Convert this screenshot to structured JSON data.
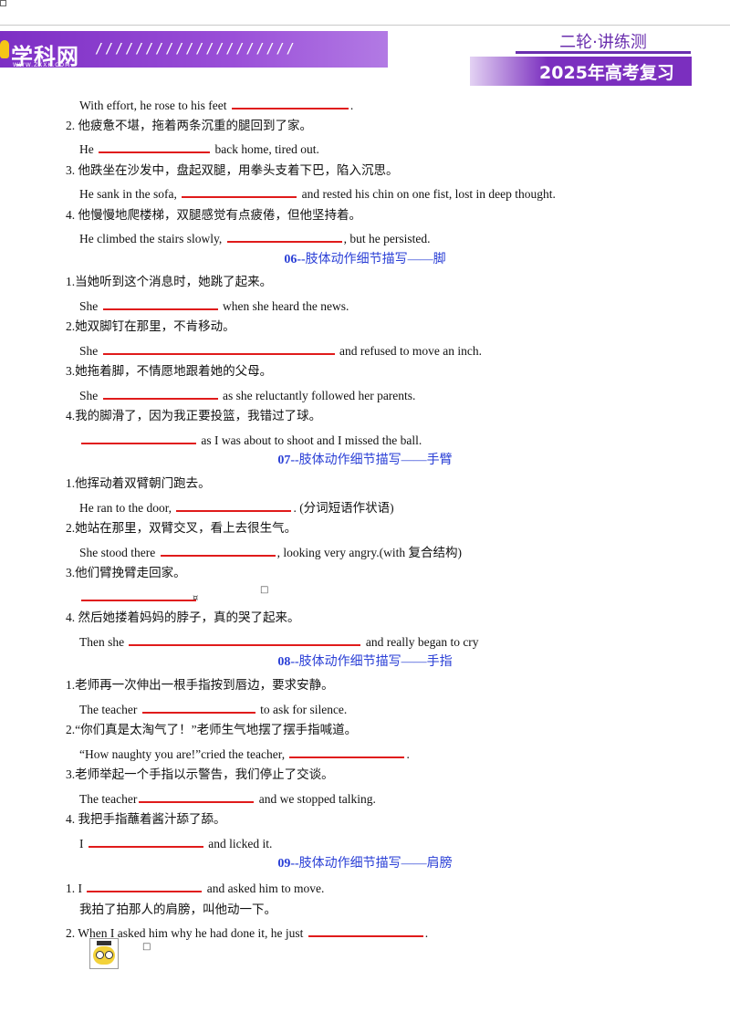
{
  "header": {
    "logo": "学科网",
    "logo_sub": "WWW.ZXXK.COM",
    "slashes": "////////////////////",
    "series": "二轮·讲练测",
    "year": "2025年高考复习"
  },
  "lines": [
    {
      "id": "l1",
      "kind": "a",
      "top": 7,
      "parts": [
        {
          "t": "With effort, he rose to his feet "
        },
        {
          "b": 128
        },
        {
          "t": "."
        }
      ]
    },
    {
      "id": "l2",
      "kind": "q",
      "top": 31,
      "parts": [
        {
          "t": "2.  他疲惫不堪，拖着两条沉重的腿回到了家。"
        }
      ]
    },
    {
      "id": "l3",
      "kind": "a",
      "top": 55,
      "parts": [
        {
          "t": "He "
        },
        {
          "b": 122
        },
        {
          "t": " back home, tired out."
        }
      ]
    },
    {
      "id": "l4",
      "kind": "q",
      "top": 80,
      "parts": [
        {
          "t": "3.  他跌坐在沙发中，盘起双腿，用拳头支着下巴，陷入沉思。"
        }
      ]
    },
    {
      "id": "l5",
      "kind": "a",
      "top": 104,
      "parts": [
        {
          "t": "He sank in the sofa, "
        },
        {
          "b": 126
        },
        {
          "t": " and rested his chin on one fist, lost in deep thought."
        }
      ]
    },
    {
      "id": "l6",
      "kind": "q",
      "top": 129,
      "parts": [
        {
          "t": "4.  他慢慢地爬楼梯，双腿感觉有点疲倦，但他坚持着。"
        }
      ]
    },
    {
      "id": "l7",
      "kind": "a",
      "top": 153,
      "parts": [
        {
          "t": "He climbed the stairs slowly, "
        },
        {
          "b": 126
        },
        {
          "t": ", but he persisted."
        }
      ]
    },
    {
      "id": "l9",
      "kind": "q",
      "top": 202,
      "parts": [
        {
          "t": "1.当她听到这个消息时，她跳了起来。"
        }
      ]
    },
    {
      "id": "l10",
      "kind": "a",
      "top": 227,
      "parts": [
        {
          "t": "She "
        },
        {
          "b": 126
        },
        {
          "t": " when she heard the news."
        }
      ]
    },
    {
      "id": "l11",
      "kind": "q",
      "top": 251,
      "parts": [
        {
          "t": "2.她双脚钉在那里，不肯移动。"
        }
      ]
    },
    {
      "id": "l12",
      "kind": "a",
      "top": 276,
      "parts": [
        {
          "t": "She "
        },
        {
          "b": 254
        },
        {
          "t": " and refused to move an inch."
        }
      ]
    },
    {
      "id": "l13",
      "kind": "q",
      "top": 300,
      "parts": [
        {
          "t": "3.她拖着脚，不情愿地跟着她的父母。"
        }
      ]
    },
    {
      "id": "l14",
      "kind": "a",
      "top": 325,
      "parts": [
        {
          "t": "She "
        },
        {
          "b": 126
        },
        {
          "t": " as she reluctantly followed her parents."
        }
      ]
    },
    {
      "id": "l15",
      "kind": "q",
      "top": 349,
      "parts": [
        {
          "t": "4.我的脚滑了，因为我正要投篮，我错过了球。"
        }
      ]
    },
    {
      "id": "l16",
      "kind": "a",
      "top": 374,
      "parts": [
        {
          "b": 126
        },
        {
          "t": " as I was about to shoot and I missed the ball."
        }
      ]
    },
    {
      "id": "l18",
      "kind": "q",
      "top": 423,
      "parts": [
        {
          "t": "1.他挥动着双臂朝门跑去。"
        }
      ]
    },
    {
      "id": "l19",
      "kind": "a",
      "top": 448,
      "parts": [
        {
          "t": "He ran to the door, "
        },
        {
          "b": 126
        },
        {
          "t": ".  (分词短语作状语)"
        }
      ]
    },
    {
      "id": "l20",
      "kind": "q",
      "top": 472,
      "parts": [
        {
          "t": "2.她站在那里，双臂交叉，看上去很生气。"
        }
      ]
    },
    {
      "id": "l21",
      "kind": "a",
      "top": 497,
      "parts": [
        {
          "t": "She stood there "
        },
        {
          "b": 126
        },
        {
          "t": ", looking very angry.(with  复合结构)"
        }
      ]
    },
    {
      "id": "l22",
      "kind": "q",
      "top": 521,
      "parts": [
        {
          "t": "3.他们臂挽臂走回家。"
        }
      ]
    },
    {
      "id": "l23",
      "kind": "a",
      "top": 546,
      "parts": [
        {
          "b": 126
        }
      ]
    },
    {
      "id": "l24",
      "kind": "q",
      "top": 570,
      "parts": [
        {
          "t": "4.  然后她搂着妈妈的脖子，真的哭了起来。"
        }
      ]
    },
    {
      "id": "l25",
      "kind": "a",
      "top": 595,
      "parts": [
        {
          "t": "Then she "
        },
        {
          "b": 254
        },
        {
          "t": " and really began to cry"
        }
      ]
    },
    {
      "id": "l27",
      "kind": "q",
      "top": 644,
      "parts": [
        {
          "t": "1.老师再一次伸出一根手指按到唇边，要求安静。"
        }
      ]
    },
    {
      "id": "l28",
      "kind": "a",
      "top": 669,
      "parts": [
        {
          "t": "The teacher "
        },
        {
          "b": 124
        },
        {
          "t": " to ask for silence."
        }
      ]
    },
    {
      "id": "l29",
      "kind": "q",
      "top": 693,
      "parts": [
        {
          "t": "2.“你们真是太淘气了！”老师生气地摆了摆手指喊道。"
        }
      ]
    },
    {
      "id": "l30",
      "kind": "a",
      "top": 718,
      "parts": [
        {
          "t": "“How naughty you are!”cried the teacher, "
        },
        {
          "b": 126
        },
        {
          "t": "."
        }
      ]
    },
    {
      "id": "l31",
      "kind": "q",
      "top": 742,
      "parts": [
        {
          "t": "3.老师举起一个手指以示警告，我们停止了交谈。"
        }
      ]
    },
    {
      "id": "l32",
      "kind": "a",
      "top": 767,
      "parts": [
        {
          "t": "The teacher"
        },
        {
          "b": 126
        },
        {
          "t": " and we stopped talking."
        }
      ]
    },
    {
      "id": "l33",
      "kind": "q",
      "top": 791,
      "parts": [
        {
          "t": "4.  我把手指蘸着酱汁舔了舔。"
        }
      ]
    },
    {
      "id": "l34",
      "kind": "a",
      "top": 816,
      "parts": [
        {
          "t": "I "
        },
        {
          "b": 126
        },
        {
          "t": " and licked it."
        }
      ]
    },
    {
      "id": "l36",
      "kind": "q",
      "top": 865,
      "parts": [
        {
          "t": "1. I "
        },
        {
          "b": 126
        },
        {
          "t": " and asked him to move."
        }
      ]
    },
    {
      "id": "l37",
      "kind": "a",
      "top": 890,
      "parts": [
        {
          "t": "我拍了拍那人的肩膀，叫他动一下。"
        }
      ]
    },
    {
      "id": "l38",
      "kind": "q",
      "top": 914,
      "parts": [
        {
          "t": "2. When I asked him why he had done it, he just "
        },
        {
          "b": 126
        },
        {
          "t": "."
        }
      ]
    }
  ],
  "headings": [
    {
      "id": "h06",
      "top": 178,
      "num": "06--",
      "zh": "肢体动作细节描写——脚"
    },
    {
      "id": "h07",
      "top": 398,
      "num": "07--",
      "zh": "肢体动作细节描写——手臂"
    },
    {
      "id": "h08",
      "top": 619,
      "num": "08--",
      "zh": "肢体动作细节描写——手指"
    },
    {
      "id": "h09",
      "top": 840,
      "num": "09--",
      "zh": "肢体动作细节描写——肩膀"
    }
  ],
  "marks": {
    "box1": "□",
    "box2": "□",
    "small": "¤"
  }
}
